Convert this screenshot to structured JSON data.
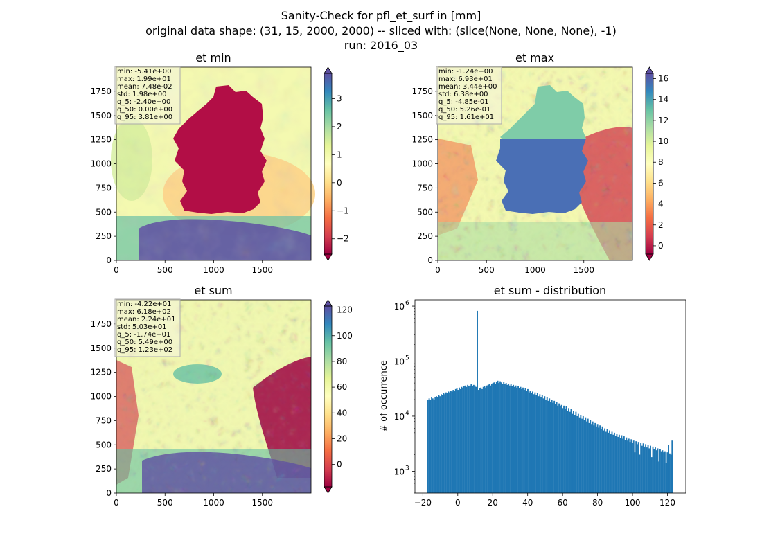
{
  "figure": {
    "suptitle_lines": [
      "Sanity-Check for pfl_et_surf in [mm]",
      "original data shape: (31, 15, 2000, 2000) -- sliced with: (slice(None, None, None), -1)",
      "run: 2016_03"
    ]
  },
  "chart_data": [
    {
      "type": "heatmap",
      "title": "et min",
      "xlim": [
        0,
        2000
      ],
      "ylim": [
        0,
        2000
      ],
      "xticks": [
        0,
        500,
        1000,
        1500
      ],
      "yticks": [
        0,
        250,
        500,
        750,
        1000,
        1250,
        1500,
        1750
      ],
      "colormap": "Spectral",
      "colorbar": {
        "vmin": -2.55,
        "vmax": 3.9,
        "ticks": [
          -2,
          -1,
          0,
          1,
          2,
          3
        ],
        "tick_labels": [
          "−2",
          "−1",
          "0",
          "1",
          "2",
          "3"
        ],
        "extend": "both"
      },
      "stats_box": [
        "min: -5.41e+00",
        "max: 1.99e+01",
        "mean: 7.48e-02",
        "std: 1.98e+00",
        "q_5: -2.40e+00",
        "q_50: 0.00e+00",
        "q_95: 3.81e+00"
      ]
    },
    {
      "type": "heatmap",
      "title": "et max",
      "xlim": [
        0,
        2000
      ],
      "ylim": [
        0,
        2000
      ],
      "xticks": [
        0,
        500,
        1000,
        1500
      ],
      "yticks": [
        0,
        250,
        500,
        750,
        1000,
        1250,
        1500,
        1750
      ],
      "colormap": "Spectral",
      "colorbar": {
        "vmin": -0.8,
        "vmax": 16.5,
        "ticks": [
          0,
          2,
          4,
          6,
          8,
          10,
          12,
          14,
          16
        ],
        "tick_labels": [
          "0",
          "2",
          "4",
          "6",
          "8",
          "10",
          "12",
          "14",
          "16"
        ],
        "extend": "both"
      },
      "stats_box": [
        "min: -1.24e+00",
        "max: 6.93e+01",
        "mean: 3.44e+00",
        "std: 6.38e+00",
        "q_5: -4.85e-01",
        "q_50: 5.26e-01",
        "q_95: 1.61e+01"
      ]
    },
    {
      "type": "heatmap",
      "title": "et sum",
      "xlim": [
        0,
        2000
      ],
      "ylim": [
        0,
        2000
      ],
      "xticks": [
        0,
        500,
        1000,
        1500
      ],
      "yticks": [
        0,
        250,
        500,
        750,
        1000,
        1250,
        1500,
        1750
      ],
      "colormap": "Spectral",
      "colorbar": {
        "vmin": -17.4,
        "vmax": 123,
        "ticks": [
          0,
          20,
          40,
          60,
          80,
          100,
          120
        ],
        "tick_labels": [
          "0",
          "20",
          "40",
          "60",
          "80",
          "100",
          "120"
        ],
        "extend": "both"
      },
      "stats_box": [
        "min: -4.22e+01",
        "max: 6.18e+02",
        "mean: 2.24e+01",
        "std: 5.03e+01",
        "q_5: -1.74e+01",
        "q_50: 5.49e+00",
        "q_95: 1.23e+02"
      ]
    },
    {
      "type": "bar",
      "title": "et sum - distribution",
      "ylabel": "# of occurrence",
      "xlabel": "",
      "yscale": "log",
      "xlim": [
        -24.5,
        130.5
      ],
      "ylim": [
        400,
        1300000
      ],
      "xticks": [
        -20,
        0,
        20,
        40,
        60,
        80,
        100,
        120
      ],
      "xtick_labels": [
        "−20",
        "0",
        "20",
        "40",
        "60",
        "80",
        "100",
        "120"
      ],
      "yticks": [
        1000,
        10000,
        100000,
        1000000
      ],
      "color": "#1f77b4",
      "bin_range": [
        -17.4,
        123
      ],
      "bin_count": 200,
      "values": [
        20000,
        21000,
        20000,
        22000,
        21000,
        20000,
        22000,
        23000,
        22000,
        24000,
        23000,
        25000,
        24000,
        26000,
        25000,
        27000,
        26000,
        28000,
        27000,
        29000,
        28000,
        30000,
        29000,
        31000,
        32000,
        30000,
        33000,
        31000,
        34000,
        32000,
        35000,
        36000,
        34000,
        37000,
        35000,
        36000,
        38000,
        35000,
        37000,
        36000,
        34000,
        820000,
        30000,
        32000,
        33000,
        31000,
        34000,
        35000,
        33000,
        36000,
        37000,
        38000,
        36000,
        39000,
        40000,
        41000,
        38000,
        42000,
        44000,
        40000,
        43000,
        41000,
        39000,
        42000,
        38000,
        40000,
        37000,
        39000,
        36000,
        38000,
        35000,
        37000,
        34000,
        36000,
        33000,
        35000,
        32000,
        34000,
        31000,
        33000,
        30000,
        32000,
        29000,
        31000,
        27000,
        29000,
        26000,
        28000,
        25000,
        27000,
        24000,
        26000,
        23000,
        25000,
        22000,
        24000,
        21000,
        23000,
        20000,
        22000,
        19000,
        21000,
        18000,
        20000,
        17500,
        19000,
        16500,
        18000,
        15500,
        17000,
        15000,
        16000,
        14000,
        15500,
        13500,
        15000,
        12500,
        14000,
        12000,
        13500,
        11000,
        12500,
        10500,
        12000,
        10000,
        11000,
        9500,
        10500,
        9000,
        10000,
        8500,
        9500,
        8000,
        9000,
        7500,
        8500,
        7200,
        8000,
        6800,
        7500,
        6500,
        7200,
        6200,
        6800,
        5800,
        6500,
        5500,
        6000,
        5200,
        5800,
        5000,
        5500,
        4800,
        5200,
        4600,
        5000,
        4400,
        4800,
        4200,
        4600,
        4000,
        4500,
        3900,
        4300,
        3700,
        4100,
        3600,
        3900,
        3400,
        3800,
        3300,
        3600,
        2200,
        3500,
        3100,
        3400,
        2000,
        3300,
        2900,
        3200,
        2800,
        3100,
        2700,
        3000,
        2600,
        2900,
        1800,
        2800,
        2500,
        2700,
        2400,
        2600,
        1500,
        2500,
        2300,
        2400,
        2200,
        2300,
        1400,
        2200,
        3000,
        2100,
        2000,
        3600
      ]
    }
  ]
}
